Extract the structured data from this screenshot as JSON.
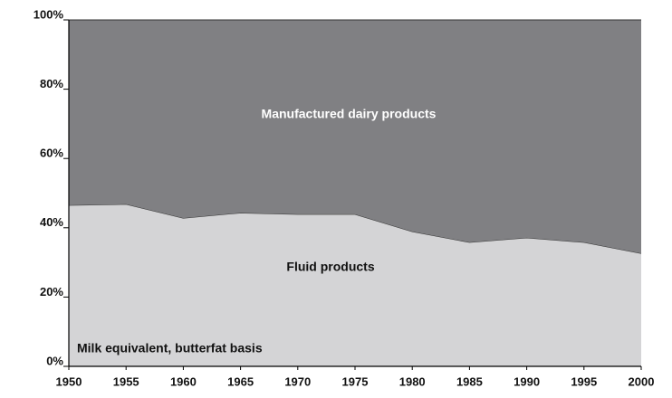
{
  "chart_data": {
    "type": "stacked_area",
    "x": [
      1950,
      1955,
      1960,
      1965,
      1970,
      1975,
      1980,
      1985,
      1990,
      1995,
      2000
    ],
    "series": [
      {
        "name": "Fluid products",
        "color": "#d4d4d6",
        "values": [
          46.5,
          46.8,
          42.8,
          44.3,
          43.9,
          43.9,
          38.9,
          35.8,
          37.1,
          35.8,
          32.6
        ]
      },
      {
        "name": "Manufactured dairy products",
        "color": "#808083",
        "values": [
          53.5,
          53.2,
          57.2,
          55.7,
          56.1,
          56.1,
          61.1,
          64.2,
          62.9,
          64.2,
          67.4
        ]
      }
    ],
    "annotations": [
      "Milk equivalent, butterfat basis"
    ],
    "xlim": [
      1950,
      2000
    ],
    "xticks": [
      1950,
      1955,
      1960,
      1965,
      1970,
      1975,
      1980,
      1985,
      1990,
      1995,
      2000
    ],
    "ylim": [
      0,
      100
    ],
    "yticks": [
      {
        "value": 0,
        "label": "0%"
      },
      {
        "value": 20,
        "label": "20%"
      },
      {
        "value": 40,
        "label": "40%"
      },
      {
        "value": 60,
        "label": "60%"
      },
      {
        "value": 80,
        "label": "80%"
      },
      {
        "value": 100,
        "label": "100%"
      }
    ]
  }
}
